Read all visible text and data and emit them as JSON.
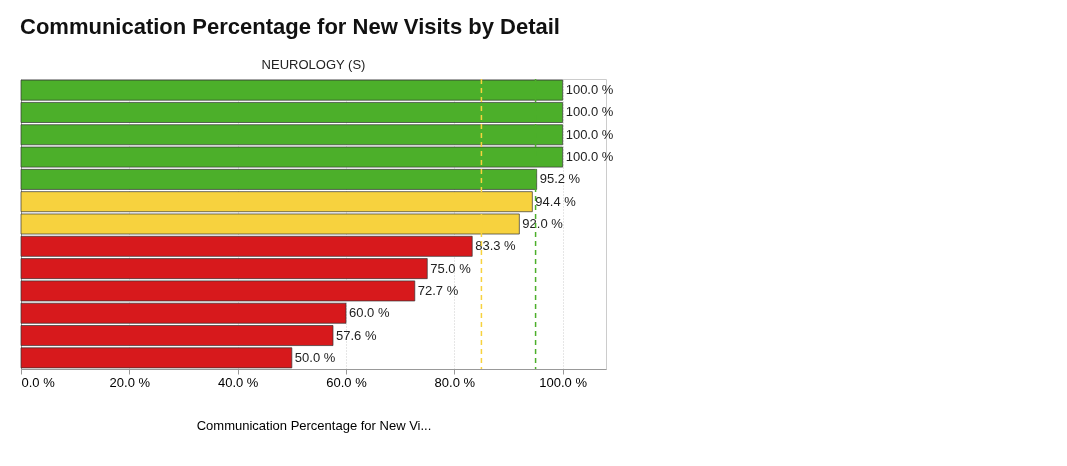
{
  "chart_data": {
    "type": "bar",
    "orientation": "horizontal",
    "title": "Communication Percentage for New Visits by Detail",
    "subtitle": "NEUROLOGY (S)",
    "xlabel": "Communication Percentage for New Vi...",
    "categories": [
      null,
      null,
      null,
      null,
      null,
      null,
      null,
      null,
      null,
      null,
      null,
      null,
      null
    ],
    "values": [
      100.0,
      100.0,
      100.0,
      100.0,
      95.2,
      94.4,
      92.0,
      83.3,
      75.0,
      72.7,
      60.0,
      57.6,
      50.0
    ],
    "value_labels": [
      "100.0 %",
      "100.0 %",
      "100.0 %",
      "100.0 %",
      "95.2 %",
      "94.4 %",
      "92.0 %",
      "83.3 %",
      "75.0 %",
      "72.7 %",
      "60.0 %",
      "57.6 %",
      "50.0 %"
    ],
    "colors": [
      "#4caf2a",
      "#4caf2a",
      "#4caf2a",
      "#4caf2a",
      "#4caf2a",
      "#f7d23e",
      "#f7d23e",
      "#d7191c",
      "#d7191c",
      "#d7191c",
      "#d7191c",
      "#d7191c",
      "#d7191c"
    ],
    "xlim": [
      0,
      108
    ],
    "xticks": [
      {
        "value": 0,
        "label": "0.0 %"
      },
      {
        "value": 20,
        "label": "20.0 %"
      },
      {
        "value": 40,
        "label": "40.0 %"
      },
      {
        "value": 60,
        "label": "60.0 %"
      },
      {
        "value": 80,
        "label": "80.0 %"
      },
      {
        "value": 100,
        "label": "100.0 %"
      }
    ],
    "ref_lines": [
      {
        "axis": "x",
        "value": 85,
        "label": null,
        "color": "#f7d23e",
        "line_style": "dashed"
      },
      {
        "axis": "x",
        "value": 95,
        "label": null,
        "color": "#4caf2a",
        "line_style": "dashed"
      }
    ],
    "grid": "x",
    "tick_labels": "x"
  }
}
